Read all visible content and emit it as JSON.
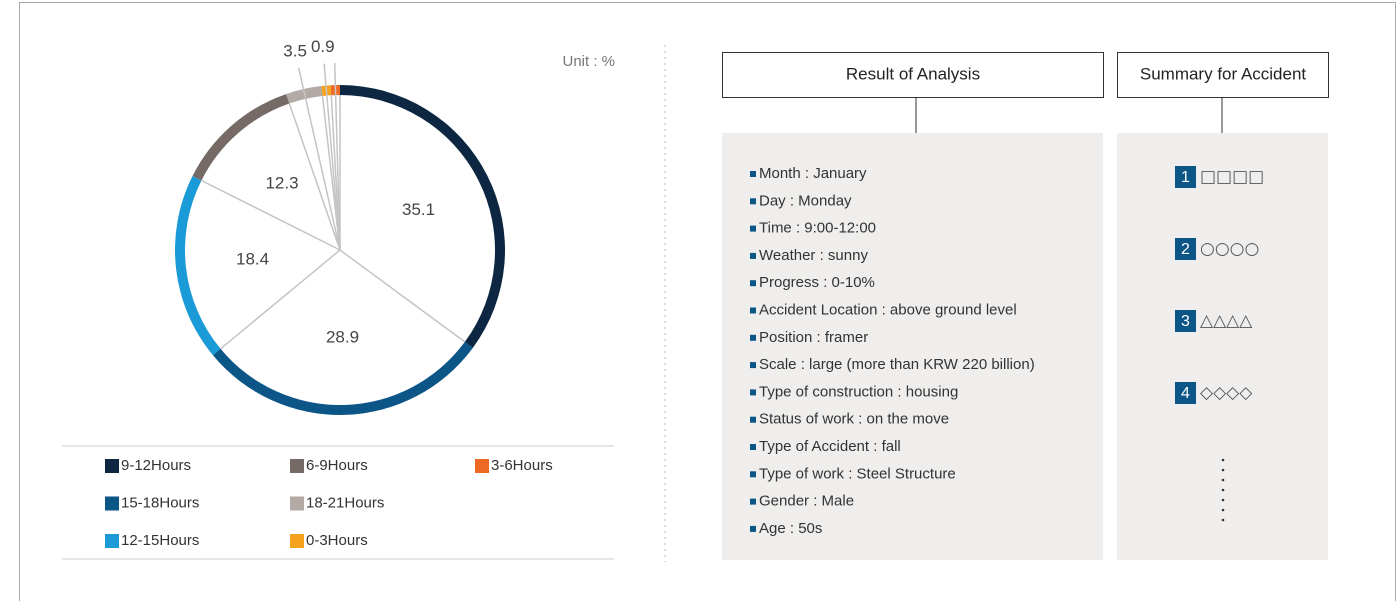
{
  "chart_data": {
    "type": "pie",
    "unit_label": "Unit : %",
    "categories": [
      "9-12Hours",
      "15-18Hours",
      "12-15Hours",
      "6-9Hours",
      "18-21Hours",
      "0-3Hours",
      "3-6Hours"
    ],
    "values": [
      35.1,
      28.9,
      18.4,
      12.3,
      3.5,
      0.9,
      0.9
    ],
    "value_labels": [
      "35.1",
      "28.9",
      "18.4",
      "12.3",
      "3.5",
      "0.9",
      null
    ],
    "colors": [
      "#0d2742",
      "#0b5587",
      "#1a9ad6",
      "#756a65",
      "#b3aaa6",
      "#f5a21e",
      "#ee6a24"
    ],
    "legend_rows": 3
  },
  "analysis": {
    "title": "Result of Analysis",
    "items": [
      "Month : January",
      "Day : Monday",
      "Time : 9:00-12:00",
      "Weather : sunny",
      "Progress : 0-10%",
      "Accident Location : above ground level",
      "Position : framer",
      "Scale : large (more than KRW 220 billion)",
      "Type of construction : housing",
      "Status of work : on the move",
      "Type of Accident : fall",
      "Type of work : Steel Structure",
      "Gender : Male",
      "Age : 50s"
    ]
  },
  "summary": {
    "title": "Summary for Accident",
    "items": [
      {
        "number": "1",
        "text": "□□□□"
      },
      {
        "number": "2",
        "text": "○○○○"
      },
      {
        "number": "3",
        "text": "△△△△"
      },
      {
        "number": "4",
        "text": "◇◇◇◇"
      }
    ]
  }
}
